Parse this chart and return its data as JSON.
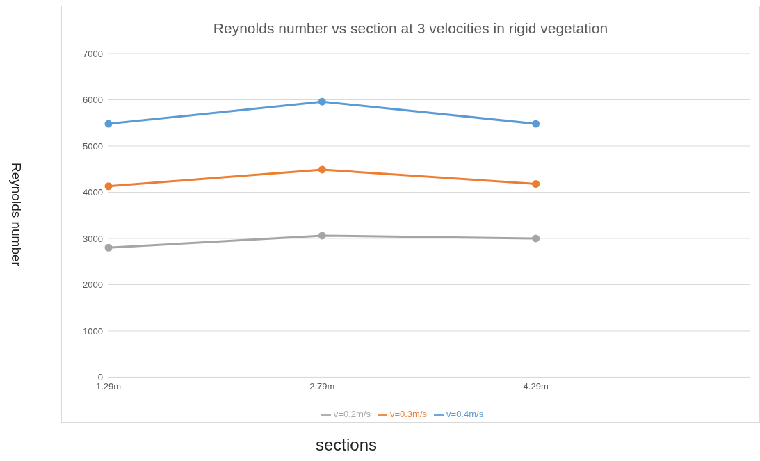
{
  "chart_data": {
    "type": "line",
    "title": "Reynolds number vs section at 3 velocities in rigid vegetation",
    "xlabel": "sections",
    "ylabel": "Reynolds number",
    "categories": [
      "1.29m",
      "2.79m",
      "4.29m",
      null
    ],
    "series": [
      {
        "name": "v=0.4m/s",
        "color": "#5b9bd5",
        "values": [
          5480,
          5960,
          5480,
          null
        ]
      },
      {
        "name": "v=0.3m/s",
        "color": "#ed7d31",
        "values": [
          4130,
          4490,
          4180,
          null
        ]
      },
      {
        "name": "v=0.2m/s",
        "color": "#a5a5a5",
        "values": [
          2800,
          3060,
          3000,
          null
        ]
      }
    ],
    "ylim": [
      0,
      7000
    ],
    "yticks": [
      0,
      1000,
      2000,
      3000,
      4000,
      5000,
      6000,
      7000
    ],
    "grid": "y",
    "legend": "bottom",
    "marker": "circle",
    "line_style": "solid"
  }
}
